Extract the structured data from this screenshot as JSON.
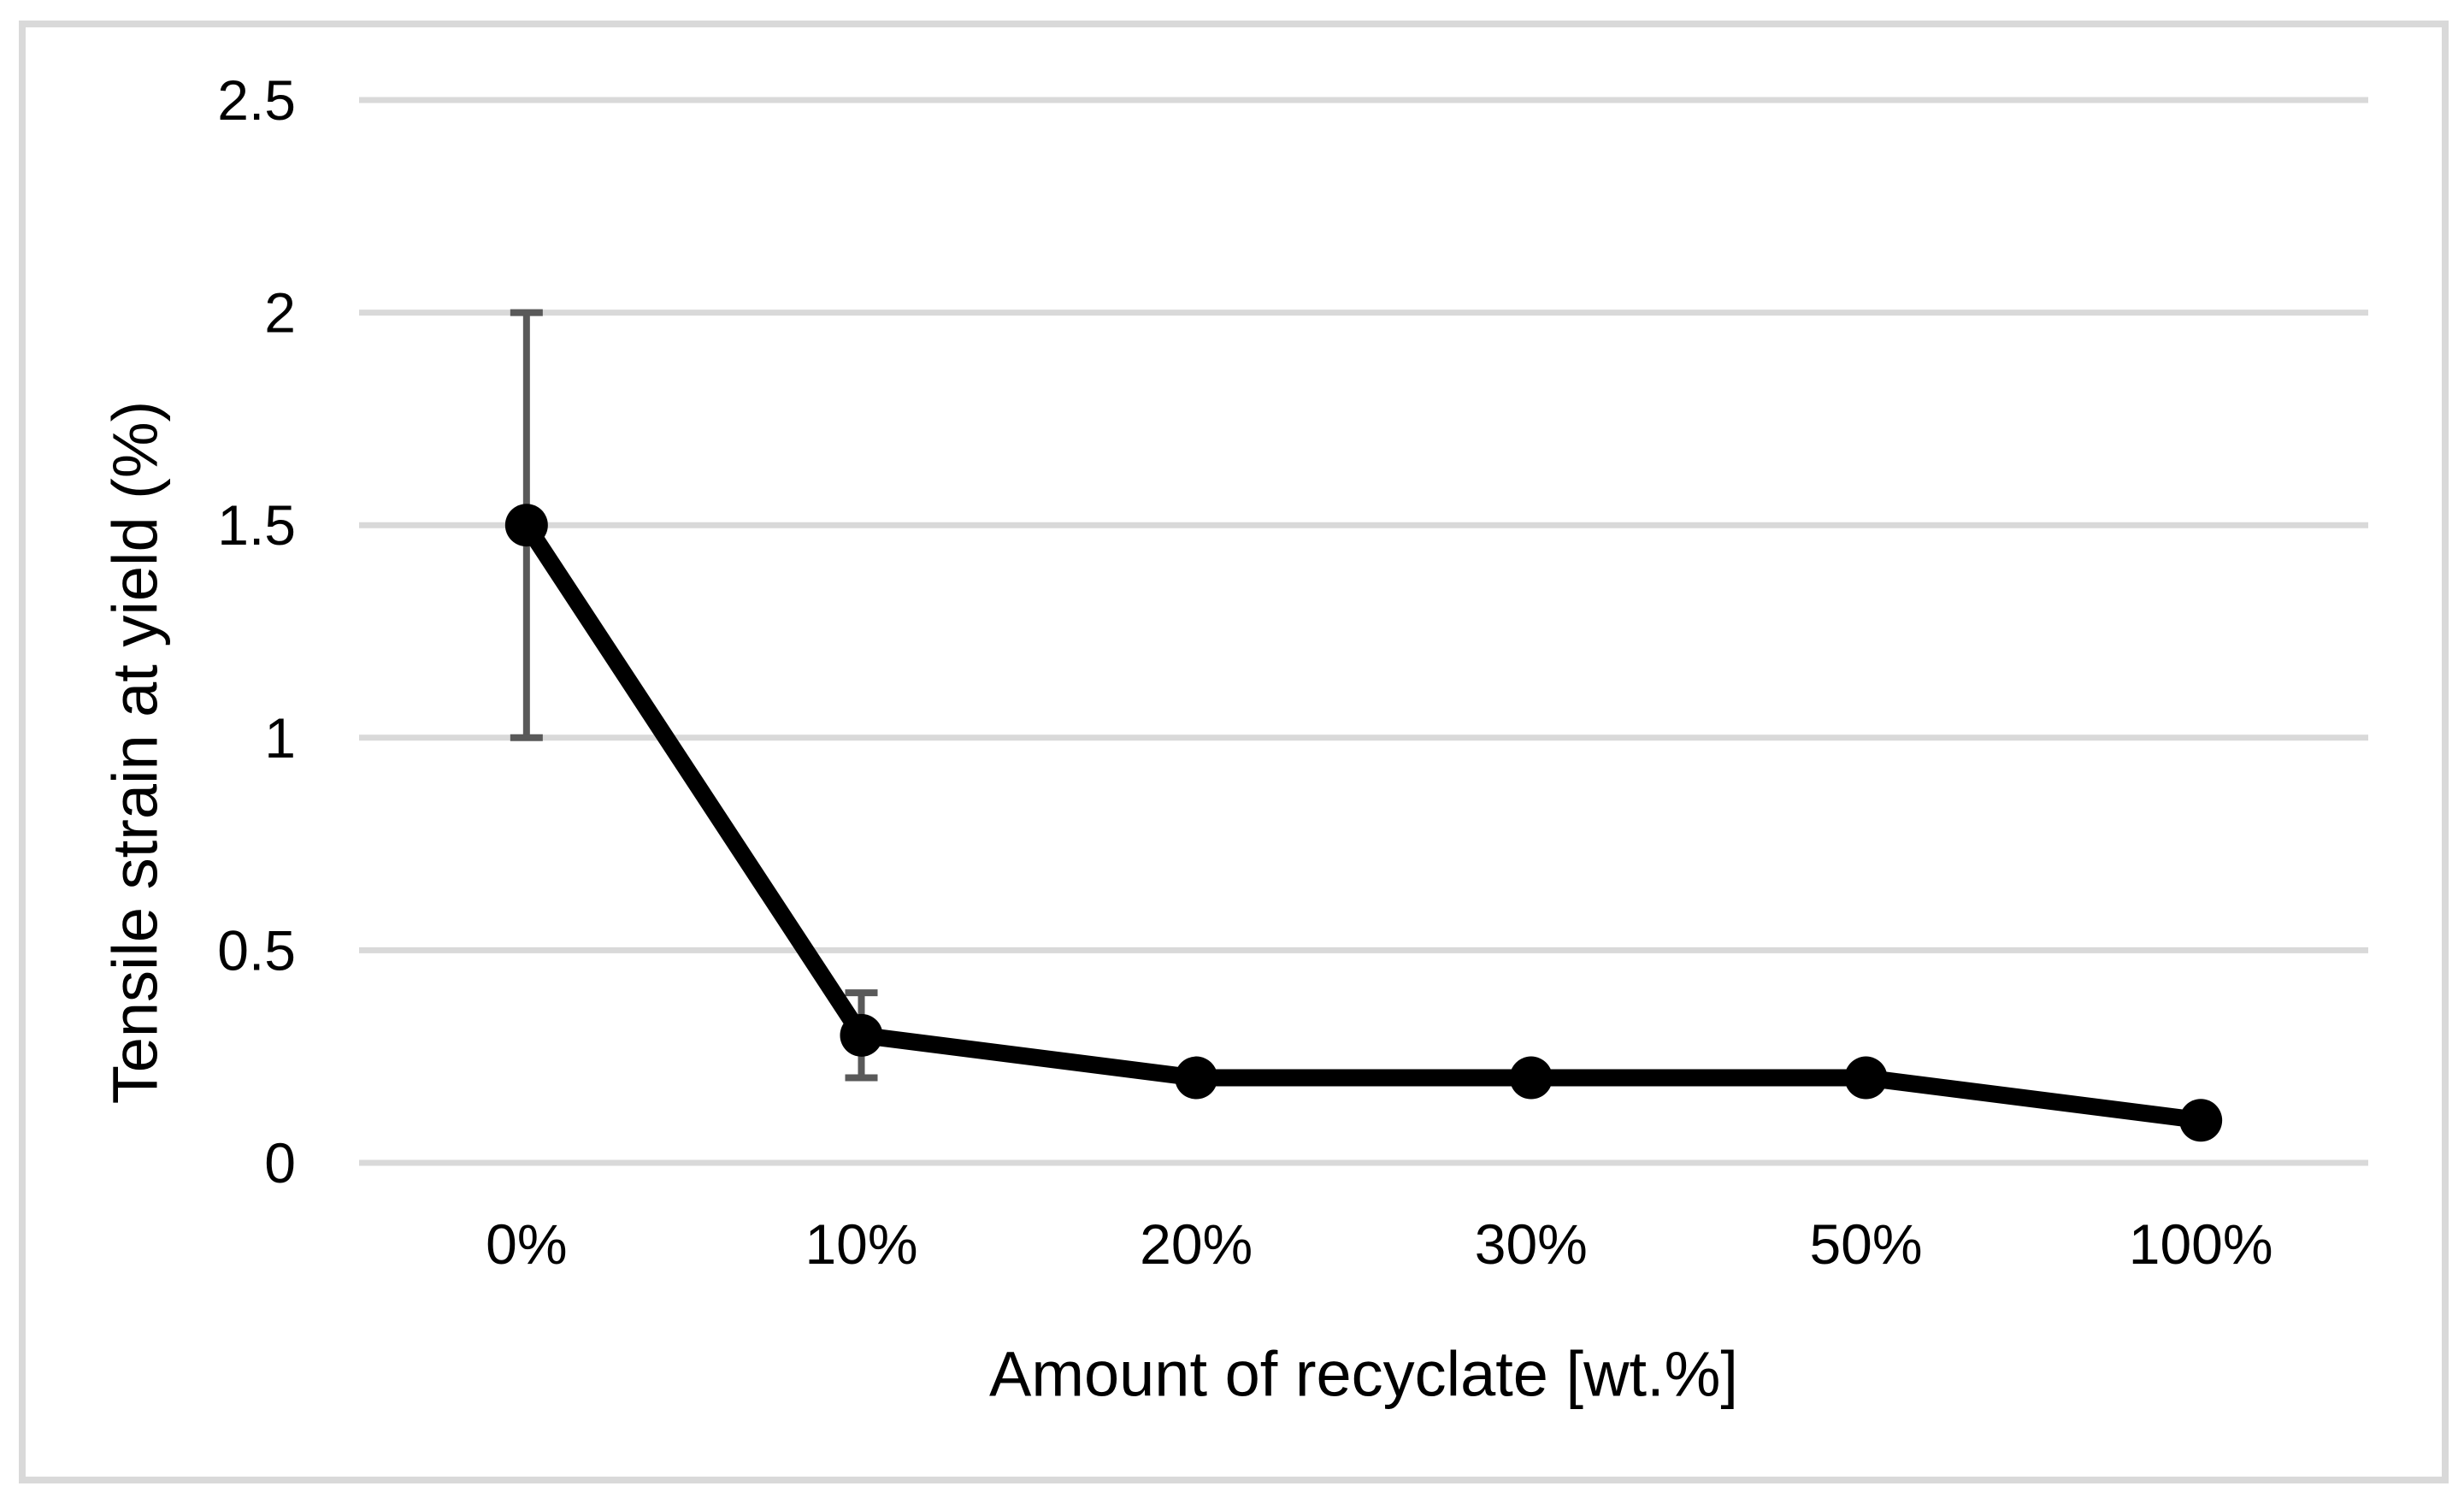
{
  "figure": {
    "background_color": "#ffffff",
    "border_color": "#d9d9d9"
  },
  "chart_data": {
    "type": "line",
    "title": "",
    "categories": [
      "0%",
      "10%",
      "20%",
      "30%",
      "50%",
      "100%"
    ],
    "series": [
      {
        "name": "Tensile strain at yield",
        "values": [
          1.5,
          0.3,
          0.2,
          0.2,
          0.2,
          0.1
        ],
        "error_bars": [
          {
            "minus": 0.5,
            "plus": 0.5
          },
          {
            "minus": 0.1,
            "plus": 0.1
          },
          null,
          null,
          null,
          null
        ],
        "line_color": "#000000",
        "marker": "circle",
        "marker_color": "#000000"
      }
    ],
    "xlabel": "Amount of recyclate [wt.%]",
    "ylabel": "Tensile strain at yield (%)",
    "ylim": [
      0,
      2.5
    ],
    "yticks": [
      0,
      0.5,
      1,
      1.5,
      2,
      2.5
    ],
    "ytick_labels": [
      "0",
      "0.5",
      "1",
      "1.5",
      "2",
      "2.5"
    ],
    "grid": "horizontal",
    "gridline_color": "#d9d9d9",
    "error_bar_color": "#595959",
    "legend_position": "none"
  }
}
